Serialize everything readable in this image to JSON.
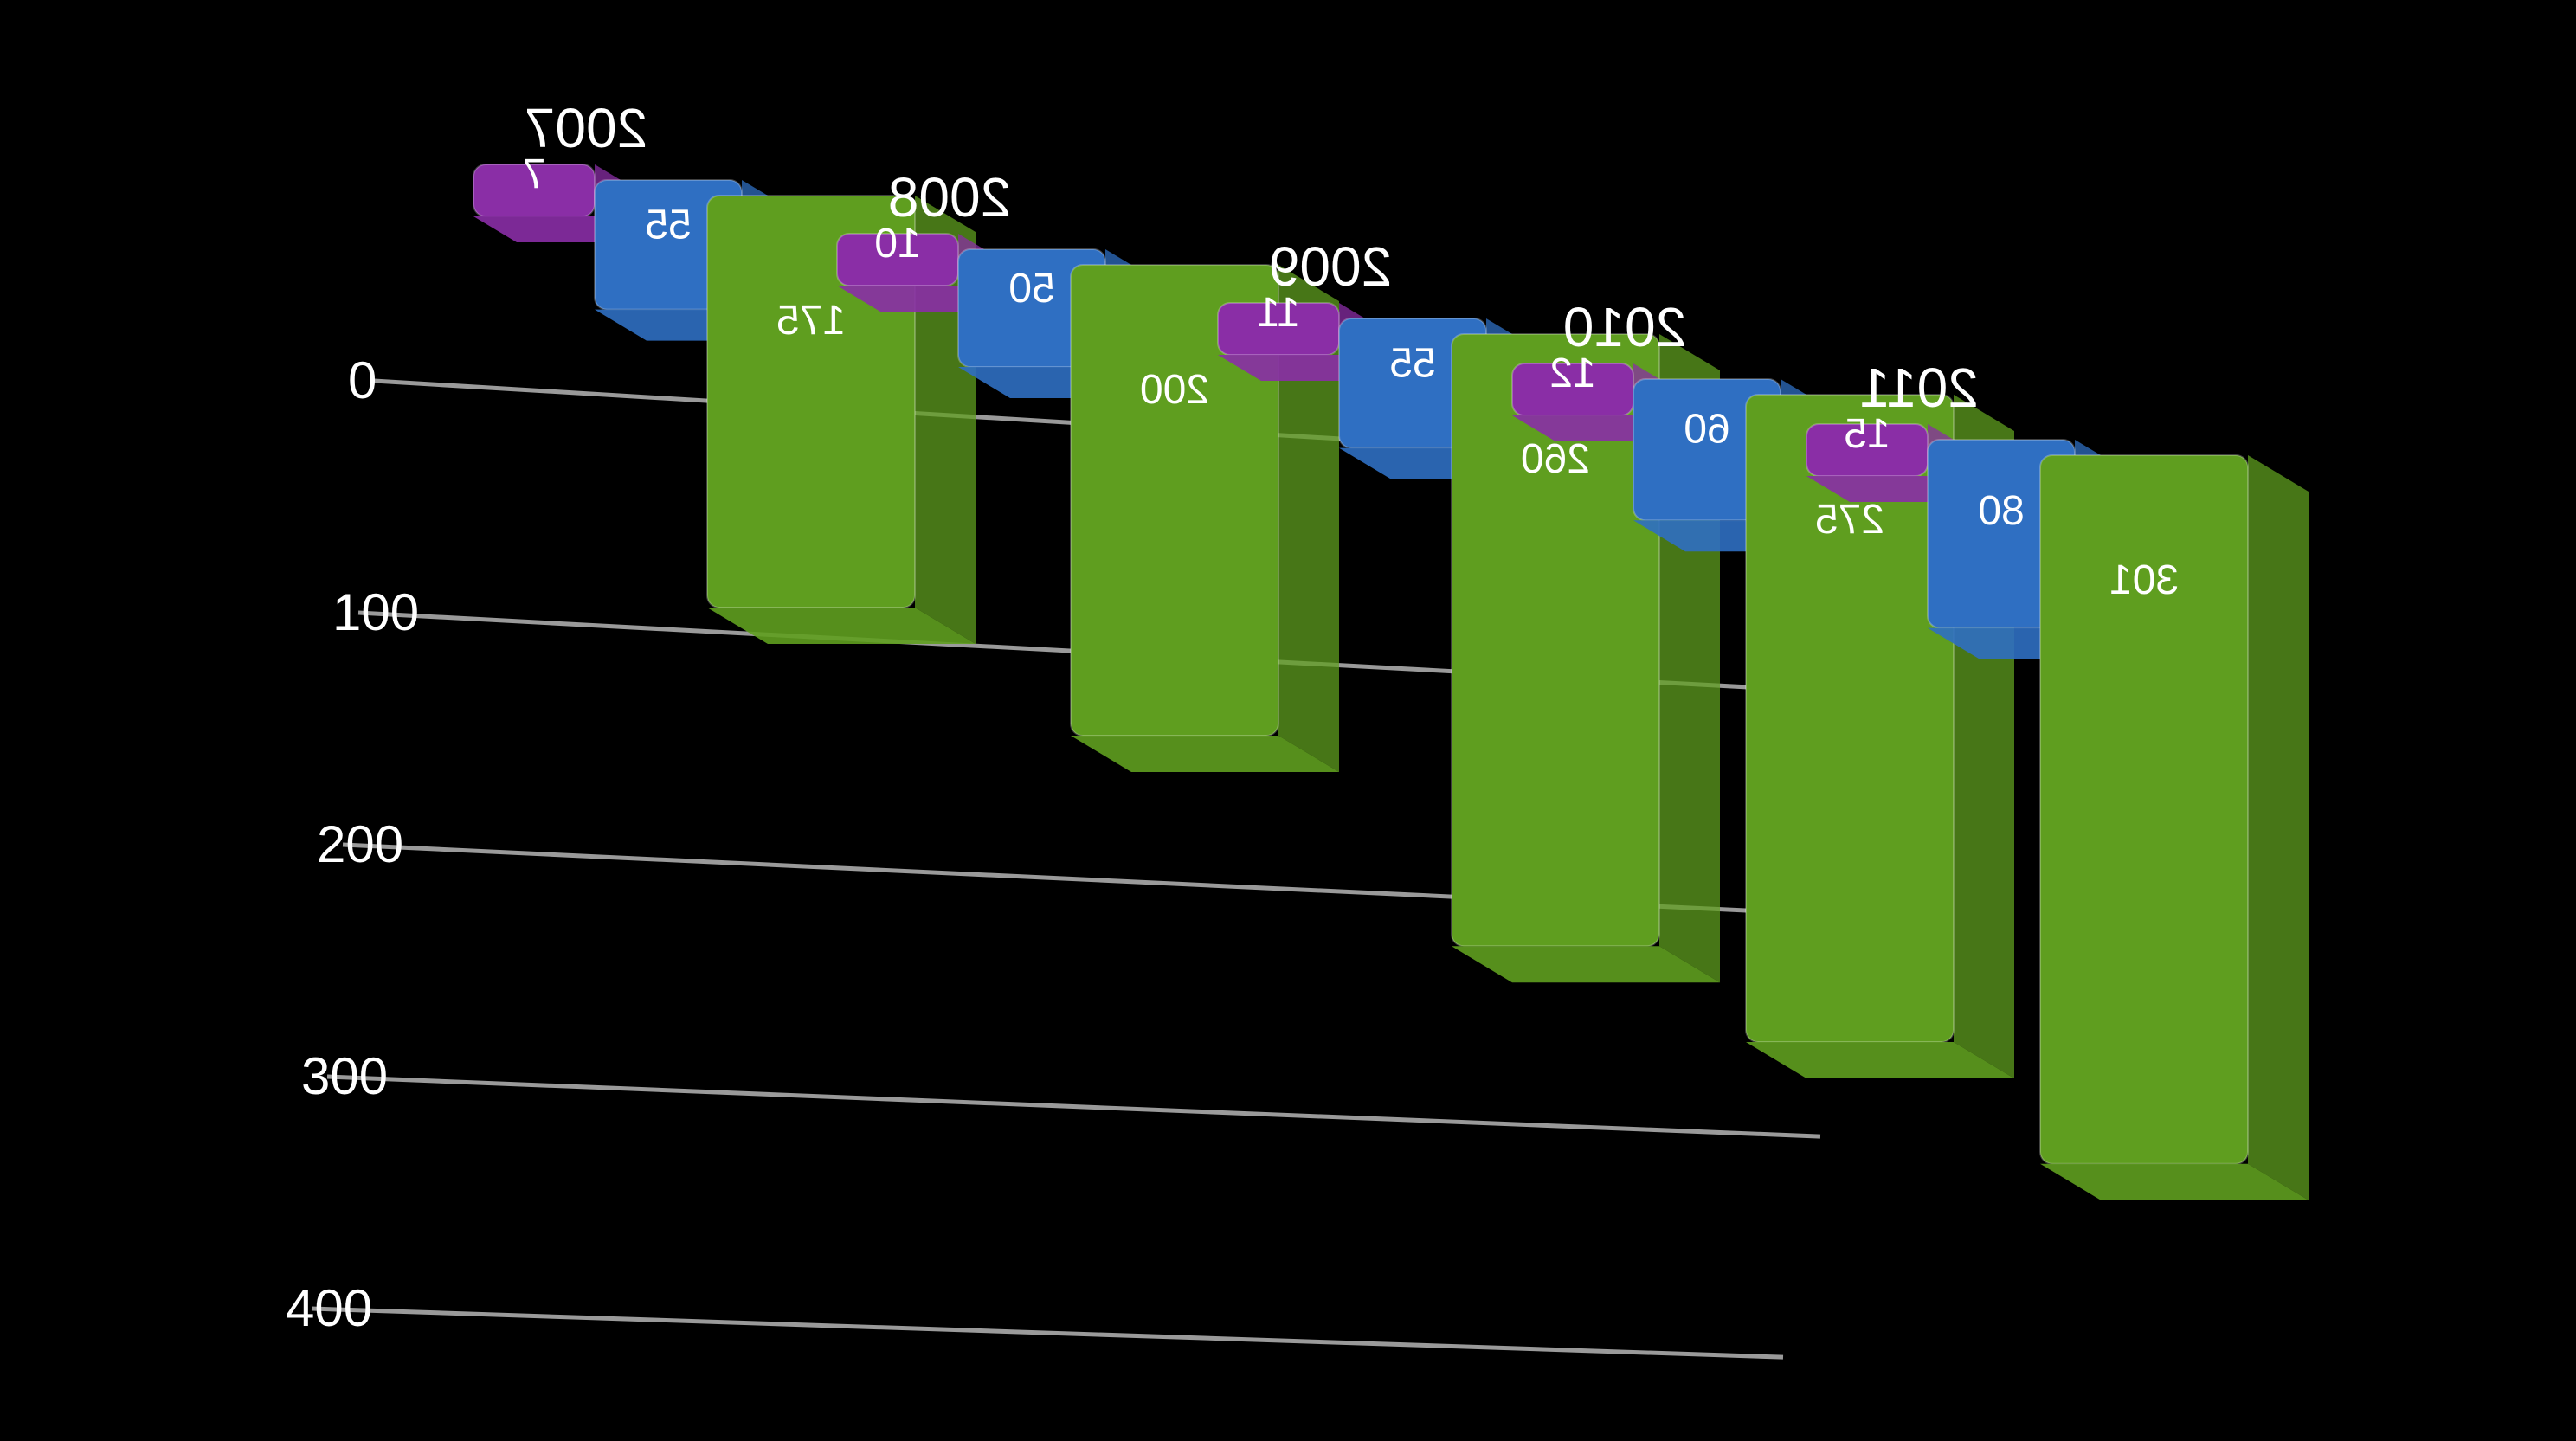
{
  "chart_data": {
    "type": "bar",
    "orientation": "3d-column",
    "categories": [
      "2007",
      "2008",
      "2009",
      "2010",
      "2011"
    ],
    "series": [
      {
        "values": [
          7,
          10,
          11,
          12,
          15
        ],
        "color": "#8a2ea6"
      },
      {
        "values": [
          55,
          50,
          55,
          60,
          80
        ],
        "color": "#2f6fc2"
      },
      {
        "values": [
          175,
          200,
          260,
          275,
          301
        ],
        "color": "#5f9e1f"
      }
    ],
    "value_labels": [
      [
        "7",
        "10",
        "11",
        "12",
        "15"
      ],
      [
        "55",
        "50",
        "55",
        "60",
        "80"
      ],
      [
        "175",
        "200",
        "260",
        "275",
        "301"
      ]
    ],
    "yticks": [
      "0",
      "100",
      "200",
      "300",
      "400"
    ],
    "ylim": [
      0,
      400
    ],
    "mirrored": true,
    "grid": true,
    "legend": "none"
  }
}
